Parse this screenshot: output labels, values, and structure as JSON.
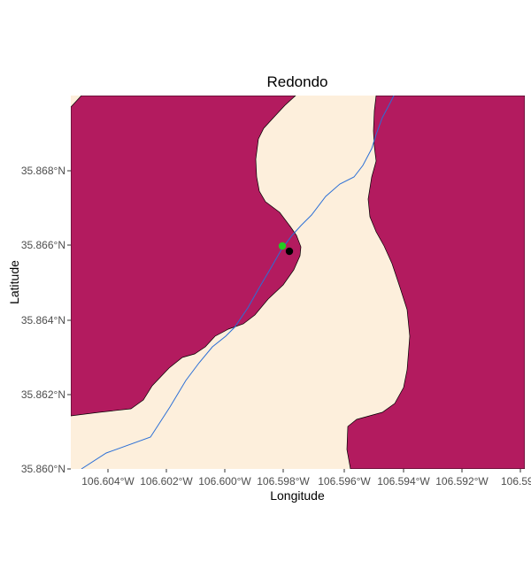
{
  "title": "Redondo",
  "x_axis": {
    "label": "Longitude",
    "ticks": [
      "106.604°W",
      "106.602°W",
      "106.600°W",
      "106.598°W",
      "106.596°W",
      "106.594°W",
      "106.592°W",
      "106.59"
    ]
  },
  "y_axis": {
    "label": "Latitude",
    "ticks": [
      "35.868°N",
      "35.866°N",
      "35.864°N",
      "35.862°N",
      "35.860°N"
    ]
  },
  "colors": {
    "land_fill": "#b31b5f",
    "corridor_fill": "#fdefdc",
    "stream": "#2b6fd6",
    "green_point": "#22cc22",
    "black_point": "#000000"
  },
  "layers": [
    {
      "name": "land-polygons",
      "icon": "polygon"
    },
    {
      "name": "stream-line",
      "icon": "line"
    },
    {
      "name": "green-point",
      "icon": "circle"
    },
    {
      "name": "black-point",
      "icon": "circle"
    }
  ]
}
